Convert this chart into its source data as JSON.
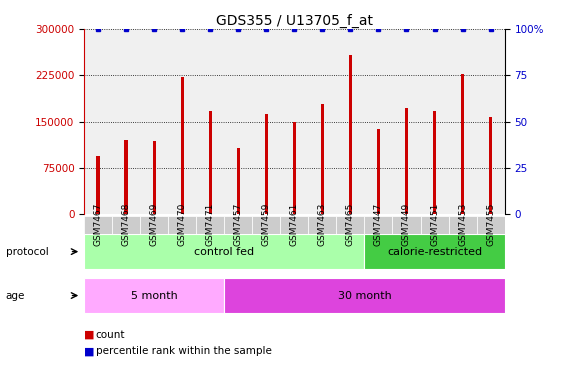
{
  "title": "GDS355 / U13705_f_at",
  "samples": [
    "GSM7467",
    "GSM7468",
    "GSM7469",
    "GSM7470",
    "GSM7471",
    "GSM7457",
    "GSM7459",
    "GSM7461",
    "GSM7463",
    "GSM7465",
    "GSM7447",
    "GSM7449",
    "GSM7451",
    "GSM7453",
    "GSM7455"
  ],
  "counts": [
    95000,
    120000,
    118000,
    222000,
    168000,
    108000,
    163000,
    150000,
    178000,
    258000,
    138000,
    172000,
    167000,
    228000,
    158000
  ],
  "percentile_ranks": [
    100,
    100,
    100,
    100,
    100,
    100,
    100,
    100,
    100,
    100,
    100,
    100,
    100,
    100,
    100
  ],
  "bar_color": "#cc0000",
  "percentile_color": "#0000cc",
  "ylim_left": [
    0,
    300000
  ],
  "ylim_right": [
    0,
    100
  ],
  "yticks_left": [
    0,
    75000,
    150000,
    225000,
    300000
  ],
  "ytick_labels_left": [
    "0",
    "75000",
    "150000",
    "225000",
    "300000"
  ],
  "yticks_right": [
    0,
    25,
    50,
    75,
    100
  ],
  "ytick_labels_right": [
    "0",
    "25",
    "50",
    "75",
    "100%"
  ],
  "protocol_labels": [
    {
      "text": "control fed",
      "start": 0,
      "end": 10,
      "color": "#aaffaa"
    },
    {
      "text": "calorie-restricted",
      "start": 10,
      "end": 15,
      "color": "#44cc44"
    }
  ],
  "age_labels": [
    {
      "text": "5 month",
      "start": 0,
      "end": 5,
      "color": "#ffaaff"
    },
    {
      "text": "30 month",
      "start": 5,
      "end": 15,
      "color": "#dd44dd"
    }
  ],
  "protocol_row_label": "protocol",
  "age_row_label": "age",
  "legend_count_label": "count",
  "legend_percentile_label": "percentile rank within the sample",
  "bg_color": "#ffffff",
  "plot_bg_color": "#f0f0f0",
  "title_fontsize": 10,
  "tick_fontsize": 7.5,
  "bar_width": 0.12
}
